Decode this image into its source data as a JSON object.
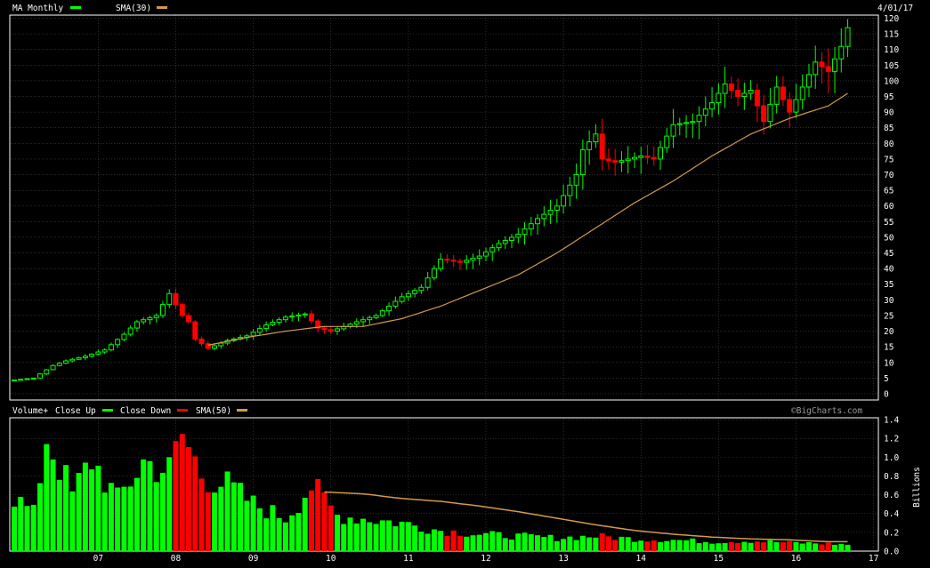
{
  "header": {
    "left_title": "MA Monthly",
    "sma_label": "SMA(30)",
    "date": "4/01/17"
  },
  "volume_header": {
    "volume_label": "Volume+",
    "close_up_label": "Close Up",
    "close_down_label": "Close Down",
    "sma_label": "SMA(50)",
    "copyright": "©BigCharts.com"
  },
  "colors": {
    "up": "#00ff00",
    "down": "#ff0000",
    "sma": "#d39a4a",
    "grid": "#4a4a4a",
    "background": "#000000"
  },
  "chart_data": [
    {
      "type": "candlestick",
      "title": "MA Monthly",
      "y_ticks": [
        0,
        5,
        10,
        15,
        20,
        25,
        30,
        35,
        40,
        45,
        50,
        55,
        60,
        65,
        70,
        75,
        80,
        85,
        90,
        95,
        100,
        105,
        110,
        115,
        120
      ],
      "ylim": [
        -2,
        121
      ],
      "x_ticks": [
        "07",
        "08",
        "09",
        "10",
        "11",
        "12",
        "13",
        "14",
        "15",
        "16",
        "17"
      ],
      "grid": true,
      "candle_anchors": [
        [
          "2006-06",
          4.4
        ],
        [
          "2006-09",
          5.0
        ],
        [
          "2006-12",
          9.0
        ],
        [
          "2007-02",
          10.5
        ],
        [
          "2007-05",
          12.0
        ],
        [
          "2007-08",
          14.0
        ],
        [
          "2007-11",
          19.0
        ],
        [
          "2008-01",
          23.0
        ],
        [
          "2008-04",
          25.0
        ],
        [
          "2008-06",
          32.0
        ],
        [
          "2008-08",
          25.0
        ],
        [
          "2008-09",
          23.0
        ],
        [
          "2008-10",
          17.5
        ],
        [
          "2008-12",
          14.5
        ],
        [
          "2009-03",
          17.0
        ],
        [
          "2009-06",
          18.5
        ],
        [
          "2009-09",
          22.0
        ],
        [
          "2009-12",
          24.5
        ],
        [
          "2010-03",
          25.5
        ],
        [
          "2010-05",
          21.0
        ],
        [
          "2010-07",
          20.0
        ],
        [
          "2010-11",
          23.0
        ],
        [
          "2011-02",
          25.0
        ],
        [
          "2011-06",
          31.0
        ],
        [
          "2011-09",
          34.0
        ],
        [
          "2011-12",
          43.0
        ],
        [
          "2012-03",
          42.0
        ],
        [
          "2012-06",
          44.0
        ],
        [
          "2012-09",
          48.0
        ],
        [
          "2012-12",
          51.0
        ],
        [
          "2013-03",
          56.0
        ],
        [
          "2013-06",
          60.0
        ],
        [
          "2013-09",
          70.0
        ],
        [
          "2013-10",
          78.0
        ],
        [
          "2013-12",
          83.0
        ],
        [
          "2014-01",
          75.0
        ],
        [
          "2014-03",
          74.0
        ],
        [
          "2014-07",
          76.0
        ],
        [
          "2014-09",
          75.0
        ],
        [
          "2014-12",
          86.0
        ],
        [
          "2015-03",
          87.0
        ],
        [
          "2015-06",
          93.0
        ],
        [
          "2015-08",
          99.0
        ],
        [
          "2015-10",
          95.0
        ],
        [
          "2015-12",
          97.0
        ],
        [
          "2016-02",
          87.0
        ],
        [
          "2016-04",
          98.0
        ],
        [
          "2016-06",
          90.0
        ],
        [
          "2016-08",
          98.0
        ],
        [
          "2016-10",
          106.0
        ],
        [
          "2016-12",
          103.0
        ],
        [
          "2017-02",
          111.0
        ],
        [
          "2017-03",
          117.0
        ]
      ],
      "series": [
        {
          "name": "SMA(30)",
          "type": "line",
          "values": [
            [
              "2008-12",
              15.5
            ],
            [
              "2009-06",
              18.0
            ],
            [
              "2009-12",
              20.0
            ],
            [
              "2010-06",
              21.5
            ],
            [
              "2010-12",
              21.5
            ],
            [
              "2011-06",
              24.0
            ],
            [
              "2011-12",
              28.0
            ],
            [
              "2012-06",
              33.0
            ],
            [
              "2012-12",
              38.0
            ],
            [
              "2013-06",
              45.0
            ],
            [
              "2013-12",
              53.0
            ],
            [
              "2014-06",
              61.0
            ],
            [
              "2014-12",
              68.0
            ],
            [
              "2015-06",
              76.0
            ],
            [
              "2015-12",
              83.0
            ],
            [
              "2016-06",
              88.0
            ],
            [
              "2016-12",
              92.0
            ],
            [
              "2017-03",
              96.0
            ]
          ]
        }
      ]
    },
    {
      "type": "bar",
      "title": "Volume+",
      "ylabel": "Billions",
      "y_ticks": [
        0.0,
        0.2,
        0.4,
        0.6,
        0.8,
        1.0,
        1.2,
        1.4
      ],
      "ylim": [
        0,
        1.42
      ],
      "x_ticks": [
        "07",
        "08",
        "09",
        "10",
        "11",
        "12",
        "13",
        "14",
        "15",
        "16",
        "17"
      ],
      "grid": true,
      "volume_anchors": [
        [
          "2006-06",
          0.58
        ],
        [
          "2006-09",
          0.4
        ],
        [
          "2006-11",
          1.23
        ],
        [
          "2007-03",
          0.6
        ],
        [
          "2007-06",
          0.98
        ],
        [
          "2007-10",
          0.55
        ],
        [
          "2008-02",
          0.95
        ],
        [
          "2008-06",
          0.86
        ],
        [
          "2008-08",
          1.23
        ],
        [
          "2008-11",
          0.82
        ],
        [
          "2009-03",
          0.7
        ],
        [
          "2009-07",
          0.5
        ],
        [
          "2009-12",
          0.35
        ],
        [
          "2010-04",
          0.7
        ],
        [
          "2010-08",
          0.38
        ],
        [
          "2011-01",
          0.34
        ],
        [
          "2011-06",
          0.3
        ],
        [
          "2011-12",
          0.22
        ],
        [
          "2012-06",
          0.18
        ],
        [
          "2012-12",
          0.16
        ],
        [
          "2013-06",
          0.14
        ],
        [
          "2013-12",
          0.16
        ],
        [
          "2014-06",
          0.13
        ],
        [
          "2014-12",
          0.12
        ],
        [
          "2015-06",
          0.1
        ],
        [
          "2015-12",
          0.11
        ],
        [
          "2016-06",
          0.09
        ],
        [
          "2016-12",
          0.08
        ],
        [
          "2017-03",
          0.07
        ]
      ],
      "series": [
        {
          "name": "SMA(50)",
          "type": "line",
          "values": [
            [
              "2010-06",
              0.63
            ],
            [
              "2010-12",
              0.61
            ],
            [
              "2011-06",
              0.56
            ],
            [
              "2011-12",
              0.53
            ],
            [
              "2012-06",
              0.48
            ],
            [
              "2012-12",
              0.42
            ],
            [
              "2013-06",
              0.35
            ],
            [
              "2013-12",
              0.28
            ],
            [
              "2014-06",
              0.22
            ],
            [
              "2014-12",
              0.18
            ],
            [
              "2015-06",
              0.15
            ],
            [
              "2015-12",
              0.13
            ],
            [
              "2016-06",
              0.12
            ],
            [
              "2016-12",
              0.1
            ],
            [
              "2017-03",
              0.1
            ]
          ]
        }
      ]
    }
  ]
}
